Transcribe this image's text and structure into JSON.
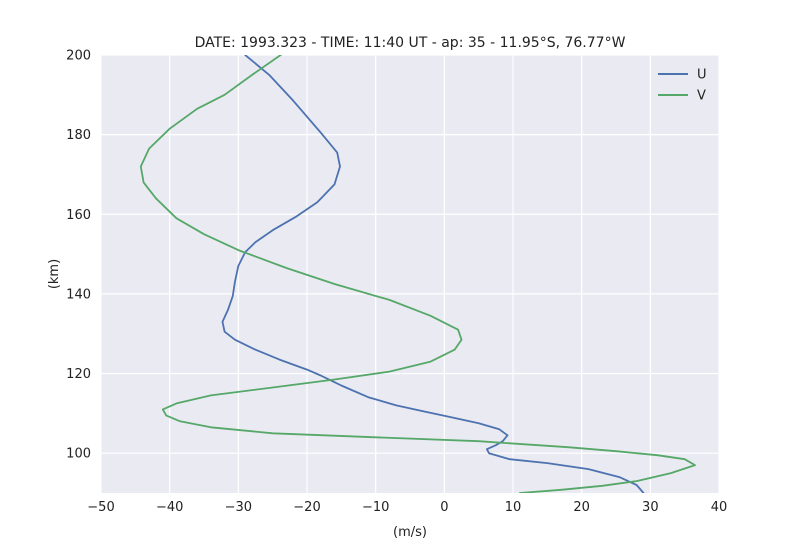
{
  "chart_data": {
    "type": "line",
    "title": "DATE: 1993.323 - TIME: 11:40 UT - ap:  35 -  11.95°S,  76.77°W",
    "xlabel": "(m/s)",
    "ylabel": "(km)",
    "xlim": [
      -50,
      40
    ],
    "ylim": [
      90,
      200
    ],
    "xticks": [
      -50,
      -40,
      -30,
      -20,
      -10,
      0,
      10,
      20,
      30,
      40
    ],
    "yticks": [
      100,
      120,
      140,
      160,
      180,
      200
    ],
    "grid": true,
    "legend": "top-right",
    "series": [
      {
        "name": "U",
        "color": "#4c72b0",
        "points": [
          [
            29.0,
            90
          ],
          [
            28.0,
            92
          ],
          [
            25.5,
            94
          ],
          [
            21.0,
            96
          ],
          [
            15.0,
            97.5
          ],
          [
            9.5,
            98.5
          ],
          [
            6.5,
            100
          ],
          [
            6.2,
            101
          ],
          [
            7.5,
            102
          ],
          [
            8.5,
            103
          ],
          [
            9.2,
            104.5
          ],
          [
            8.0,
            106
          ],
          [
            5.0,
            107.5
          ],
          [
            1.0,
            109
          ],
          [
            -3.0,
            110.5
          ],
          [
            -7.0,
            112
          ],
          [
            -11.0,
            114
          ],
          [
            -15.0,
            117
          ],
          [
            -18.0,
            119.5
          ],
          [
            -20.0,
            121
          ],
          [
            -24.0,
            123.5
          ],
          [
            -27.5,
            126
          ],
          [
            -30.5,
            128.5
          ],
          [
            -32.0,
            130.5
          ],
          [
            -32.3,
            133
          ],
          [
            -31.5,
            136
          ],
          [
            -30.8,
            139.5
          ],
          [
            -30.5,
            143
          ],
          [
            -30.0,
            147
          ],
          [
            -29.0,
            150.5
          ],
          [
            -27.5,
            153
          ],
          [
            -25.0,
            156
          ],
          [
            -21.5,
            159.5
          ],
          [
            -18.5,
            163
          ],
          [
            -16.0,
            167.5
          ],
          [
            -15.2,
            172
          ],
          [
            -15.6,
            175.5
          ],
          [
            -18.0,
            180.5
          ],
          [
            -22.0,
            188.5
          ],
          [
            -25.5,
            195
          ],
          [
            -29.0,
            200
          ]
        ]
      },
      {
        "name": "V",
        "color": "#55a868",
        "points": [
          [
            11.0,
            90
          ],
          [
            17.0,
            90.8
          ],
          [
            23.0,
            91.8
          ],
          [
            28.0,
            93
          ],
          [
            33.0,
            95
          ],
          [
            36.5,
            97
          ],
          [
            35.0,
            98.5
          ],
          [
            31.0,
            99.5
          ],
          [
            25.0,
            100.5
          ],
          [
            18.0,
            101.5
          ],
          [
            5.0,
            103
          ],
          [
            -10.0,
            104
          ],
          [
            -25.0,
            105
          ],
          [
            -34.0,
            106.5
          ],
          [
            -38.5,
            108
          ],
          [
            -40.5,
            109.5
          ],
          [
            -41.0,
            111
          ],
          [
            -39.0,
            112.5
          ],
          [
            -34.0,
            114.5
          ],
          [
            -25.0,
            116.5
          ],
          [
            -16.0,
            118.5
          ],
          [
            -8.0,
            120.5
          ],
          [
            -2.0,
            123
          ],
          [
            1.5,
            126
          ],
          [
            2.5,
            128.5
          ],
          [
            2.0,
            131
          ],
          [
            -2.0,
            134.5
          ],
          [
            -8.0,
            138.5
          ],
          [
            -16.0,
            142.5
          ],
          [
            -23.0,
            146.5
          ],
          [
            -30.0,
            151
          ],
          [
            -35.0,
            155
          ],
          [
            -39.0,
            159
          ],
          [
            -42.0,
            164
          ],
          [
            -43.8,
            168
          ],
          [
            -44.2,
            172
          ],
          [
            -43.0,
            176.5
          ],
          [
            -40.0,
            181.5
          ],
          [
            -36.0,
            186.5
          ],
          [
            -32.0,
            190
          ],
          [
            -28.0,
            195
          ],
          [
            -23.0,
            201
          ]
        ]
      }
    ]
  }
}
